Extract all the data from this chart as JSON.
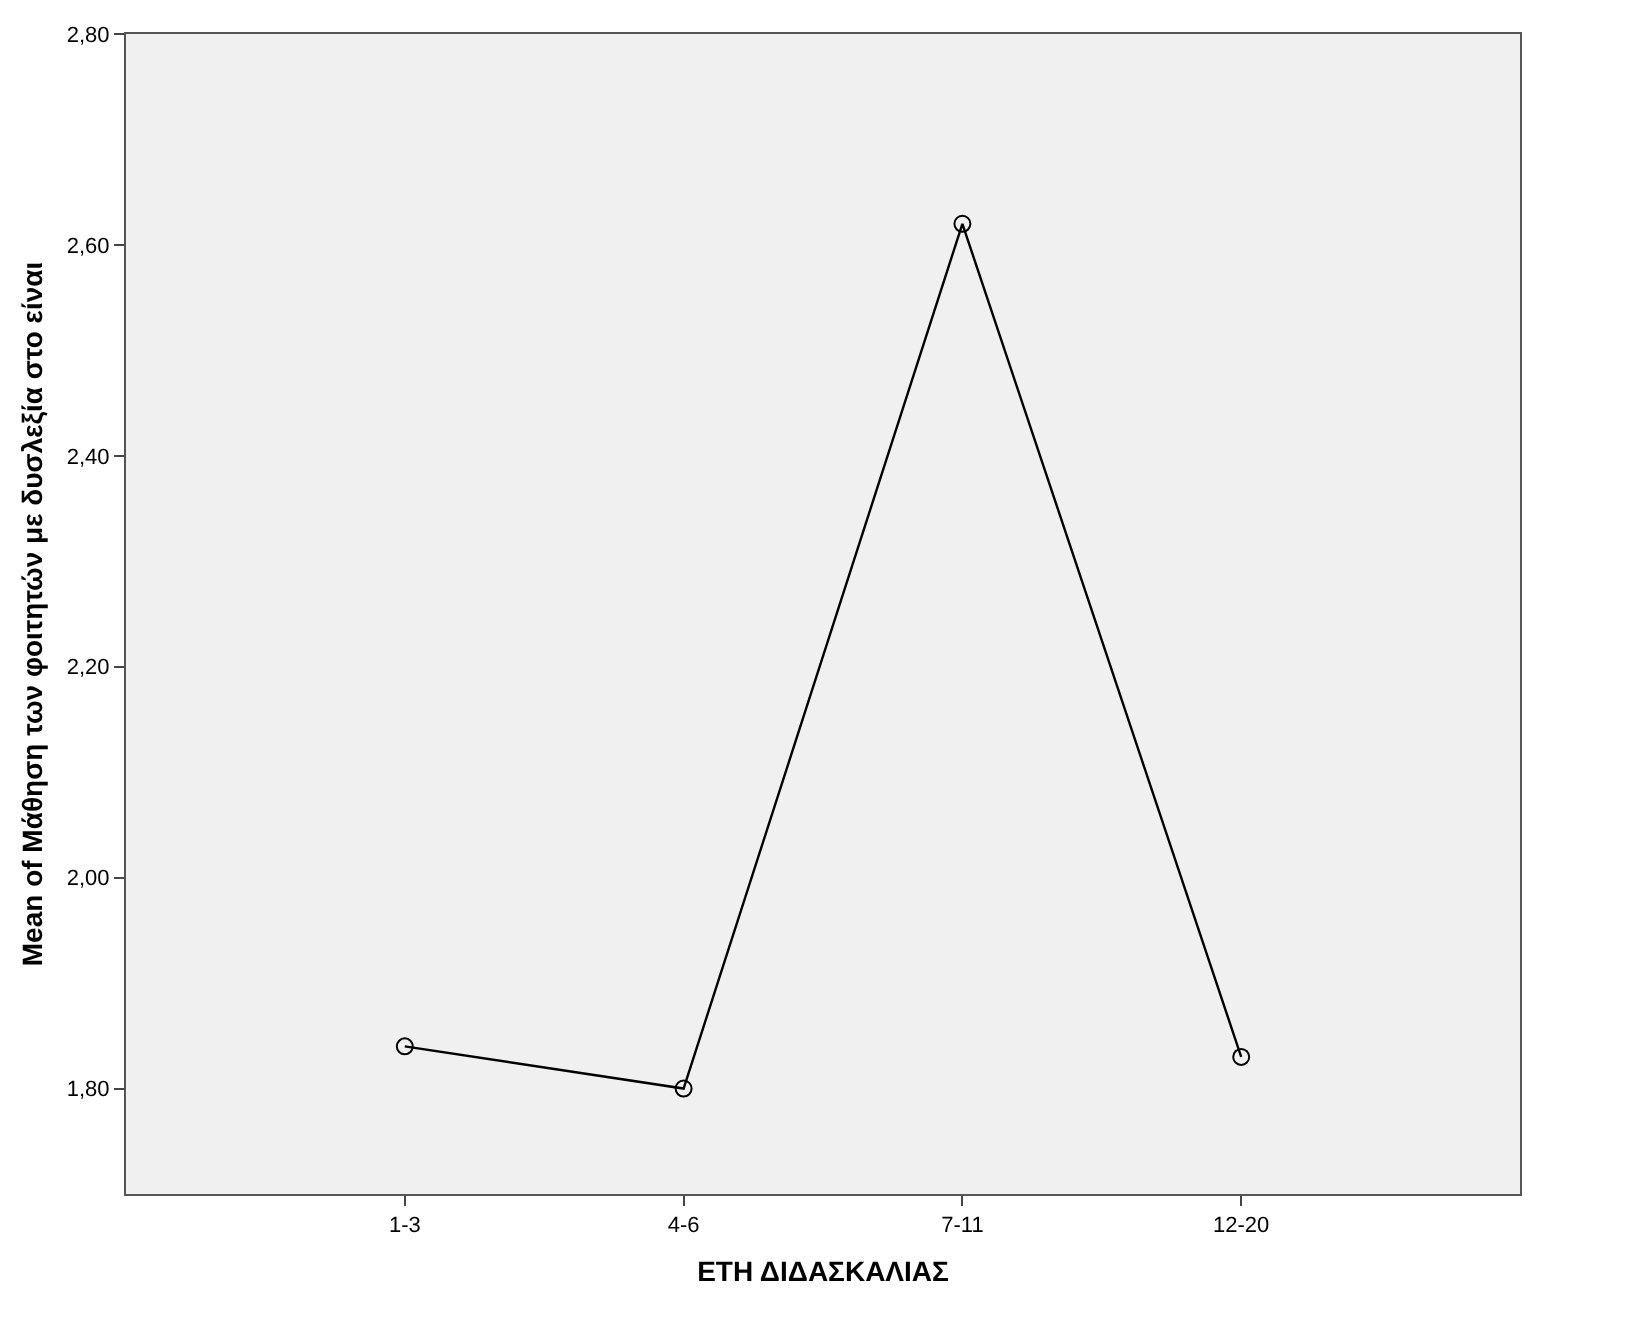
{
  "chart_data": {
    "type": "line",
    "xlabel": "ΕΤΗ ΔΙΔΑΣΚΑΛΙΑΣ",
    "ylabel": "Mean of Μάθηση των φοιτητών με δυσλεξία στο είναι",
    "categories": [
      "1-3",
      "4-6",
      "7-11",
      "12-20"
    ],
    "series": [
      {
        "color": "#000000",
        "values": [
          1.84,
          1.8,
          2.62,
          1.83
        ]
      }
    ],
    "ylim": [
      1.7,
      2.8
    ],
    "yticks": [
      {
        "value": 1.8,
        "label": "1,80"
      },
      {
        "value": 2.0,
        "label": "2,00"
      },
      {
        "value": 2.2,
        "label": "2,20"
      },
      {
        "value": 2.4,
        "label": "2,40"
      },
      {
        "value": 2.6,
        "label": "2,60"
      },
      {
        "value": 2.8,
        "label": "2,80"
      }
    ],
    "marker": "circle",
    "line_style": "solid"
  }
}
